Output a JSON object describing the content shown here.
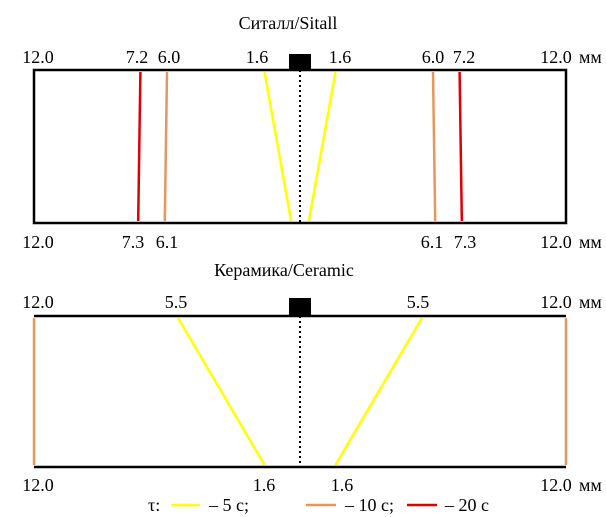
{
  "colors": {
    "frame": "#000000",
    "axis": "#000000",
    "tau_5": "#ffff00",
    "tau_10": "#e8965a",
    "tau_20": "#e00000"
  },
  "unit": "мм",
  "panels": [
    {
      "title": "Ситалл/Sitall",
      "top_labels": [
        "12.0",
        "7.2",
        "6.0",
        "1.6",
        "1.6",
        "6.0",
        "7.2",
        "12.0"
      ],
      "bottom_labels": [
        "12.0",
        "7.3",
        "6.1",
        "6.1",
        "7.3",
        "12.0"
      ],
      "edge_mm": 12.0,
      "lines": [
        {
          "series": "tau_20",
          "top_mm": -7.2,
          "bottom_mm": -7.3
        },
        {
          "series": "tau_10",
          "top_mm": -6.0,
          "bottom_mm": -6.1
        },
        {
          "series": "tau_5",
          "top_mm": -1.6,
          "bottom_mm": -0.4
        },
        {
          "series": "tau_5",
          "top_mm": 1.6,
          "bottom_mm": 0.4
        },
        {
          "series": "tau_10",
          "top_mm": 6.0,
          "bottom_mm": 6.1
        },
        {
          "series": "tau_20",
          "top_mm": 7.2,
          "bottom_mm": 7.3
        }
      ]
    },
    {
      "title": "Керамика/Ceramic",
      "top_labels": [
        "12.0",
        "5.5",
        "5.5",
        "12.0"
      ],
      "bottom_labels": [
        "12.0",
        "1.6",
        "1.6",
        "12.0"
      ],
      "edge_mm": 12.0,
      "lines": [
        {
          "series": "tau_10",
          "top_mm": -12.0,
          "bottom_mm": -12.0
        },
        {
          "series": "tau_5",
          "top_mm": -5.5,
          "bottom_mm": -1.6
        },
        {
          "series": "tau_5",
          "top_mm": 5.5,
          "bottom_mm": 1.6
        },
        {
          "series": "tau_10",
          "top_mm": 12.0,
          "bottom_mm": 12.0
        }
      ]
    }
  ],
  "legend": {
    "prefix": "τ:",
    "items": [
      {
        "series": "tau_5",
        "label": "– 5 с;"
      },
      {
        "series": "tau_10",
        "label": "– 10 с;"
      },
      {
        "series": "tau_20",
        "label": "– 20 с"
      }
    ]
  }
}
